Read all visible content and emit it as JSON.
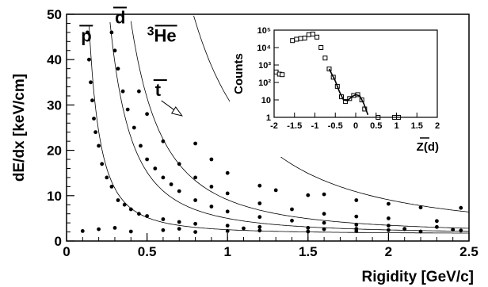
{
  "chart_data": [
    {
      "type": "scatter",
      "title": "",
      "xlabel": "Rigidity [GeV/c]",
      "ylabel": "dE/dx [keV/cm]",
      "xlim": [
        0,
        2.5
      ],
      "ylim": [
        0,
        50
      ],
      "x_ticks": [
        "0",
        "0.5",
        "1",
        "1.5",
        "2",
        "2.5"
      ],
      "y_ticks": [
        "0",
        "10",
        "20",
        "30",
        "40",
        "50"
      ],
      "annotations": [
        {
          "label": "p",
          "overline": true,
          "x": 0.09,
          "y": 44
        },
        {
          "label": "d",
          "overline": true,
          "x": 0.3,
          "y": 48
        },
        {
          "label": "He",
          "prefix": "3",
          "overline": true,
          "x": 0.5,
          "y": 44
        },
        {
          "label": "t",
          "overline": true,
          "x": 0.55,
          "y": 32
        }
      ],
      "series": [
        {
          "points": [
            [
              0.1,
              2.2
            ],
            [
              0.2,
              2.6
            ],
            [
              0.4,
              2.1
            ],
            [
              0.6,
              2.4
            ],
            [
              0.8,
              2.0
            ],
            [
              1.0,
              2.2
            ],
            [
              1.2,
              2.3
            ],
            [
              1.5,
              2.1
            ],
            [
              1.8,
              2.2
            ],
            [
              2.0,
              2.4
            ],
            [
              2.2,
              2.1
            ],
            [
              2.45,
              2.3
            ],
            [
              0.3,
              2.9
            ],
            [
              0.7,
              2.7
            ],
            [
              1.1,
              2.8
            ],
            [
              1.6,
              2.6
            ],
            [
              2.1,
              2.7
            ],
            [
              2.4,
              2.5
            ]
          ]
        },
        {
          "points": [
            [
              0.13,
              46
            ],
            [
              0.14,
              40
            ],
            [
              0.15,
              35
            ],
            [
              0.16,
              31
            ],
            [
              0.17,
              27
            ],
            [
              0.18,
              24
            ],
            [
              0.2,
              21
            ],
            [
              0.22,
              17
            ],
            [
              0.25,
              14
            ],
            [
              0.28,
              12
            ],
            [
              0.32,
              9
            ],
            [
              0.36,
              8
            ],
            [
              0.4,
              7
            ],
            [
              0.45,
              6
            ],
            [
              0.5,
              5.5
            ],
            [
              0.6,
              4.8
            ],
            [
              0.7,
              4.2
            ],
            [
              0.8,
              3.8
            ],
            [
              1.0,
              3.4
            ],
            [
              1.2,
              3.1
            ],
            [
              1.5,
              2.9
            ],
            [
              1.8,
              2.7
            ],
            [
              2.1,
              2.6
            ],
            [
              2.4,
              2.5
            ]
          ]
        },
        {
          "points": [
            [
              0.28,
              46
            ],
            [
              0.3,
              42
            ],
            [
              0.32,
              38
            ],
            [
              0.35,
              33
            ],
            [
              0.38,
              29
            ],
            [
              0.42,
              25
            ],
            [
              0.46,
              21
            ],
            [
              0.5,
              18
            ],
            [
              0.55,
              16
            ],
            [
              0.6,
              14
            ],
            [
              0.65,
              12.5
            ],
            [
              0.7,
              11
            ],
            [
              0.8,
              9
            ],
            [
              0.9,
              7.6
            ],
            [
              1.0,
              6.5
            ],
            [
              1.2,
              5.3
            ],
            [
              1.4,
              4.5
            ],
            [
              1.6,
              4.0
            ],
            [
              1.8,
              3.6
            ],
            [
              2.0,
              3.4
            ],
            [
              2.3,
              3.1
            ]
          ]
        },
        {
          "points": [
            [
              0.45,
              33
            ],
            [
              0.5,
              28
            ],
            [
              0.6,
              22
            ],
            [
              0.7,
              17
            ],
            [
              0.8,
              14
            ],
            [
              0.9,
              12
            ],
            [
              1.0,
              10.5
            ],
            [
              1.2,
              8.3
            ],
            [
              1.4,
              7
            ],
            [
              1.6,
              6
            ],
            [
              1.8,
              5.4
            ],
            [
              2.0,
              5.0
            ],
            [
              2.3,
              4.4
            ]
          ]
        },
        {
          "points": [
            [
              0.9,
              18
            ],
            [
              1.0,
              15
            ],
            [
              1.2,
              12.2
            ],
            [
              1.5,
              10.1
            ],
            [
              1.6,
              10.3
            ],
            [
              1.8,
              9.0
            ],
            [
              2.0,
              8.2
            ],
            [
              2.2,
              7.4
            ],
            [
              2.45,
              7.3
            ],
            [
              1.3,
              11.2
            ],
            [
              0.8,
              21.5
            ]
          ]
        }
      ],
      "curves": [
        {
          "label": "p",
          "k": 0.9
        },
        {
          "label": "d",
          "k": 3.4
        },
        {
          "label": "t",
          "k": 7.5
        },
        {
          "label": "He",
          "k": 30
        }
      ]
    },
    {
      "type": "scatter",
      "title": "",
      "xlabel": "Z(d)",
      "xlabel_overline": "d",
      "ylabel": "Counts",
      "scale": "log-y",
      "xlim": [
        -2,
        2
      ],
      "ylim": [
        1,
        100000
      ],
      "x_ticks": [
        "-2",
        "-1.5",
        "-1",
        "-0.5",
        "0",
        "0.5",
        "1",
        "1.5",
        "2"
      ],
      "y_ticks": [
        "1",
        "10",
        "10²",
        "10³",
        "10⁴",
        "10⁵"
      ],
      "points": [
        [
          -1.95,
          400
        ],
        [
          -1.87,
          300
        ],
        [
          -1.8,
          280
        ],
        [
          -1.55,
          25000
        ],
        [
          -1.45,
          30000
        ],
        [
          -1.35,
          33000
        ],
        [
          -1.25,
          35000
        ],
        [
          -1.15,
          55000
        ],
        [
          -1.05,
          60000
        ],
        [
          -0.95,
          40000
        ],
        [
          -0.85,
          10000
        ],
        [
          -0.75,
          2500
        ],
        [
          -0.65,
          600
        ],
        [
          -0.55,
          200
        ],
        [
          -0.45,
          60
        ],
        [
          -0.35,
          15
        ],
        [
          -0.25,
          8
        ],
        [
          -0.15,
          12
        ],
        [
          -0.05,
          18
        ],
        [
          0.05,
          20
        ],
        [
          0.15,
          10
        ],
        [
          0.22,
          3
        ],
        [
          0.55,
          1
        ],
        [
          0.95,
          1
        ],
        [
          1.05,
          1
        ]
      ],
      "fit": [
        [
          -0.65,
          600
        ],
        [
          -0.5,
          120
        ],
        [
          -0.4,
          30
        ],
        [
          -0.3,
          10
        ],
        [
          -0.2,
          9
        ],
        [
          -0.1,
          15
        ],
        [
          0.0,
          20
        ],
        [
          0.1,
          17
        ],
        [
          0.2,
          6
        ],
        [
          0.3,
          1.4
        ]
      ]
    }
  ]
}
